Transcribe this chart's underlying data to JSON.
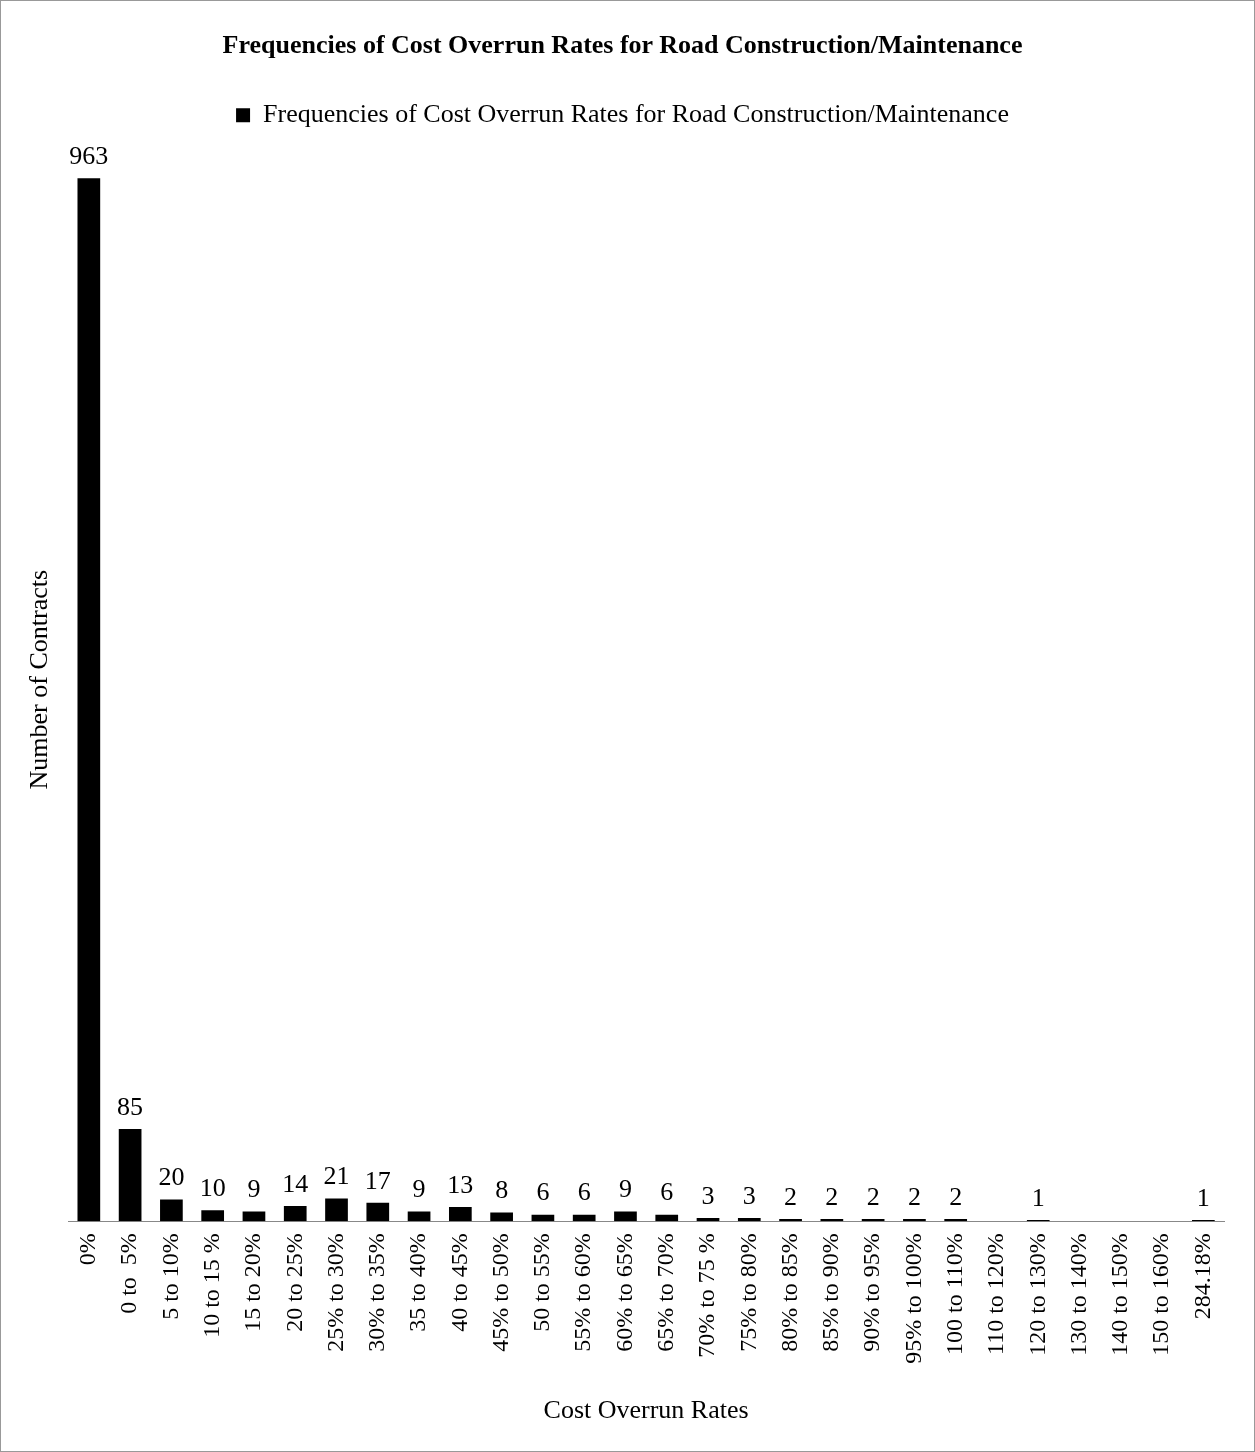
{
  "chart_data": {
    "type": "bar",
    "title": "Frequencies of Cost Overrun Rates for Road Construction/Maintenance",
    "xlabel": "Cost Overrun Rates",
    "ylabel": "Number of Contracts",
    "categories": [
      "0%",
      "0 to  5%",
      "5 to 10%",
      "10 to 15 %",
      "15 to 20%",
      "20 to 25%",
      "25% to 30%",
      "30% to 35%",
      "35 to 40%",
      "40 to 45%",
      "45% to 50%",
      "50 to 55%",
      "55% to 60%",
      "60% to 65%",
      "65% to 70%",
      "70% to 75 %",
      "75% to 80%",
      "80% to 85%",
      "85% to 90%",
      "90% to 95%",
      "95% to 100%",
      "100 to 110%",
      "110 to 120%",
      "120 to 130%",
      "130 to 140%",
      "140 to 150%",
      "150 to 160%",
      "284.18%"
    ],
    "series": [
      {
        "name": "Frequencies of Cost Overrun Rates for Road Construction/Maintenance",
        "color": "#000000",
        "values": [
          963,
          85,
          20,
          10,
          9,
          14,
          21,
          17,
          9,
          13,
          8,
          6,
          6,
          9,
          6,
          3,
          3,
          2,
          2,
          2,
          2,
          2,
          null,
          1,
          null,
          null,
          null,
          1
        ]
      }
    ],
    "data_labels": true,
    "legend": "top",
    "grid": false,
    "tick_labels": "x"
  }
}
